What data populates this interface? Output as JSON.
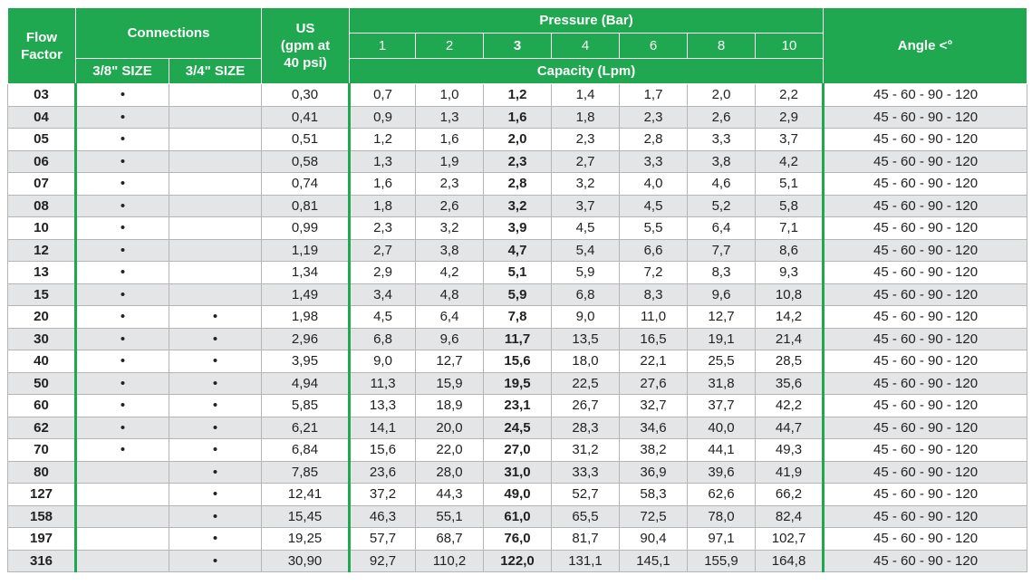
{
  "header": {
    "flow_factor": "Flow\nFactor",
    "connections": "Connections",
    "us": "US\n(gpm at\n40 psi)",
    "pressure": "Pressure (Bar)",
    "pressures": [
      "1",
      "2",
      "3",
      "4",
      "6",
      "8",
      "10"
    ],
    "sizes": [
      "3/8\" SIZE",
      "3/4\" SIZE"
    ],
    "capacity": "Capacity (Lpm)",
    "angle": "Angle <°"
  },
  "table": {
    "rows": [
      [
        "03",
        "•",
        null,
        "0,30",
        "0,7",
        "1,0",
        "1,2",
        "1,4",
        "1,7",
        "2,0",
        "2,2",
        "45 - 60 - 90 - 120"
      ],
      [
        "04",
        "•",
        null,
        "0,41",
        "0,9",
        "1,3",
        "1,6",
        "1,8",
        "2,3",
        "2,6",
        "2,9",
        "45 - 60 - 90 - 120"
      ],
      [
        "05",
        "•",
        null,
        "0,51",
        "1,2",
        "1,6",
        "2,0",
        "2,3",
        "2,8",
        "3,3",
        "3,7",
        "45 - 60 - 90 - 120"
      ],
      [
        "06",
        "•",
        null,
        "0,58",
        "1,3",
        "1,9",
        "2,3",
        "2,7",
        "3,3",
        "3,8",
        "4,2",
        "45 - 60 - 90 - 120"
      ],
      [
        "07",
        "•",
        null,
        "0,74",
        "1,6",
        "2,3",
        "2,8",
        "3,2",
        "4,0",
        "4,6",
        "5,1",
        "45 - 60 - 90 - 120"
      ],
      [
        "08",
        "•",
        null,
        "0,81",
        "1,8",
        "2,6",
        "3,2",
        "3,7",
        "4,5",
        "5,2",
        "5,8",
        "45 - 60 - 90 - 120"
      ],
      [
        "10",
        "•",
        null,
        "0,99",
        "2,3",
        "3,2",
        "3,9",
        "4,5",
        "5,5",
        "6,4",
        "7,1",
        "45 - 60 - 90 - 120"
      ],
      [
        "12",
        "•",
        null,
        "1,19",
        "2,7",
        "3,8",
        "4,7",
        "5,4",
        "6,6",
        "7,7",
        "8,6",
        "45 - 60 - 90 - 120"
      ],
      [
        "13",
        "•",
        null,
        "1,34",
        "2,9",
        "4,2",
        "5,1",
        "5,9",
        "7,2",
        "8,3",
        "9,3",
        "45 - 60 - 90 - 120"
      ],
      [
        "15",
        "•",
        null,
        "1,49",
        "3,4",
        "4,8",
        "5,9",
        "6,8",
        "8,3",
        "9,6",
        "10,8",
        "45 - 60 - 90 - 120"
      ],
      [
        "20",
        "•",
        "•",
        "1,98",
        "4,5",
        "6,4",
        "7,8",
        "9,0",
        "11,0",
        "12,7",
        "14,2",
        "45 - 60 - 90 - 120"
      ],
      [
        "30",
        "•",
        "•",
        "2,96",
        "6,8",
        "9,6",
        "11,7",
        "13,5",
        "16,5",
        "19,1",
        "21,4",
        "45 - 60 - 90 - 120"
      ],
      [
        "40",
        "•",
        "•",
        "3,95",
        "9,0",
        "12,7",
        "15,6",
        "18,0",
        "22,1",
        "25,5",
        "28,5",
        "45 - 60 - 90 - 120"
      ],
      [
        "50",
        "•",
        "•",
        "4,94",
        "11,3",
        "15,9",
        "19,5",
        "22,5",
        "27,6",
        "31,8",
        "35,6",
        "45 - 60 - 90 - 120"
      ],
      [
        "60",
        "•",
        "•",
        "5,85",
        "13,3",
        "18,9",
        "23,1",
        "26,7",
        "32,7",
        "37,7",
        "42,2",
        "45 - 60 - 90 - 120"
      ],
      [
        "62",
        "•",
        "•",
        "6,21",
        "14,1",
        "20,0",
        "24,5",
        "28,3",
        "34,6",
        "40,0",
        "44,7",
        "45 - 60 - 90 - 120"
      ],
      [
        "70",
        "•",
        "•",
        "6,84",
        "15,6",
        "22,0",
        "27,0",
        "31,2",
        "38,2",
        "44,1",
        "49,3",
        "45 - 60 - 90 - 120"
      ],
      [
        "80",
        null,
        "•",
        "7,85",
        "23,6",
        "28,0",
        "31,0",
        "33,3",
        "36,9",
        "39,6",
        "41,9",
        "45 - 60 - 90 - 120"
      ],
      [
        "127",
        null,
        "•",
        "12,41",
        "37,2",
        "44,3",
        "49,0",
        "52,7",
        "58,3",
        "62,6",
        "66,2",
        "45 - 60 - 90 - 120"
      ],
      [
        "158",
        null,
        "•",
        "15,45",
        "46,3",
        "55,1",
        "61,0",
        "65,5",
        "72,5",
        "78,0",
        "82,4",
        "45 - 60 - 90 - 120"
      ],
      [
        "197",
        null,
        "•",
        "19,25",
        "57,7",
        "68,7",
        "76,0",
        "81,7",
        "90,4",
        "97,1",
        "102,7",
        "45 - 60 - 90 - 120"
      ],
      [
        "316",
        null,
        "•",
        "30,90",
        "92,7",
        "110,2",
        "122,0",
        "131,1",
        "145,1",
        "155,9",
        "164,8",
        "45 - 60 - 90 - 120"
      ]
    ]
  }
}
